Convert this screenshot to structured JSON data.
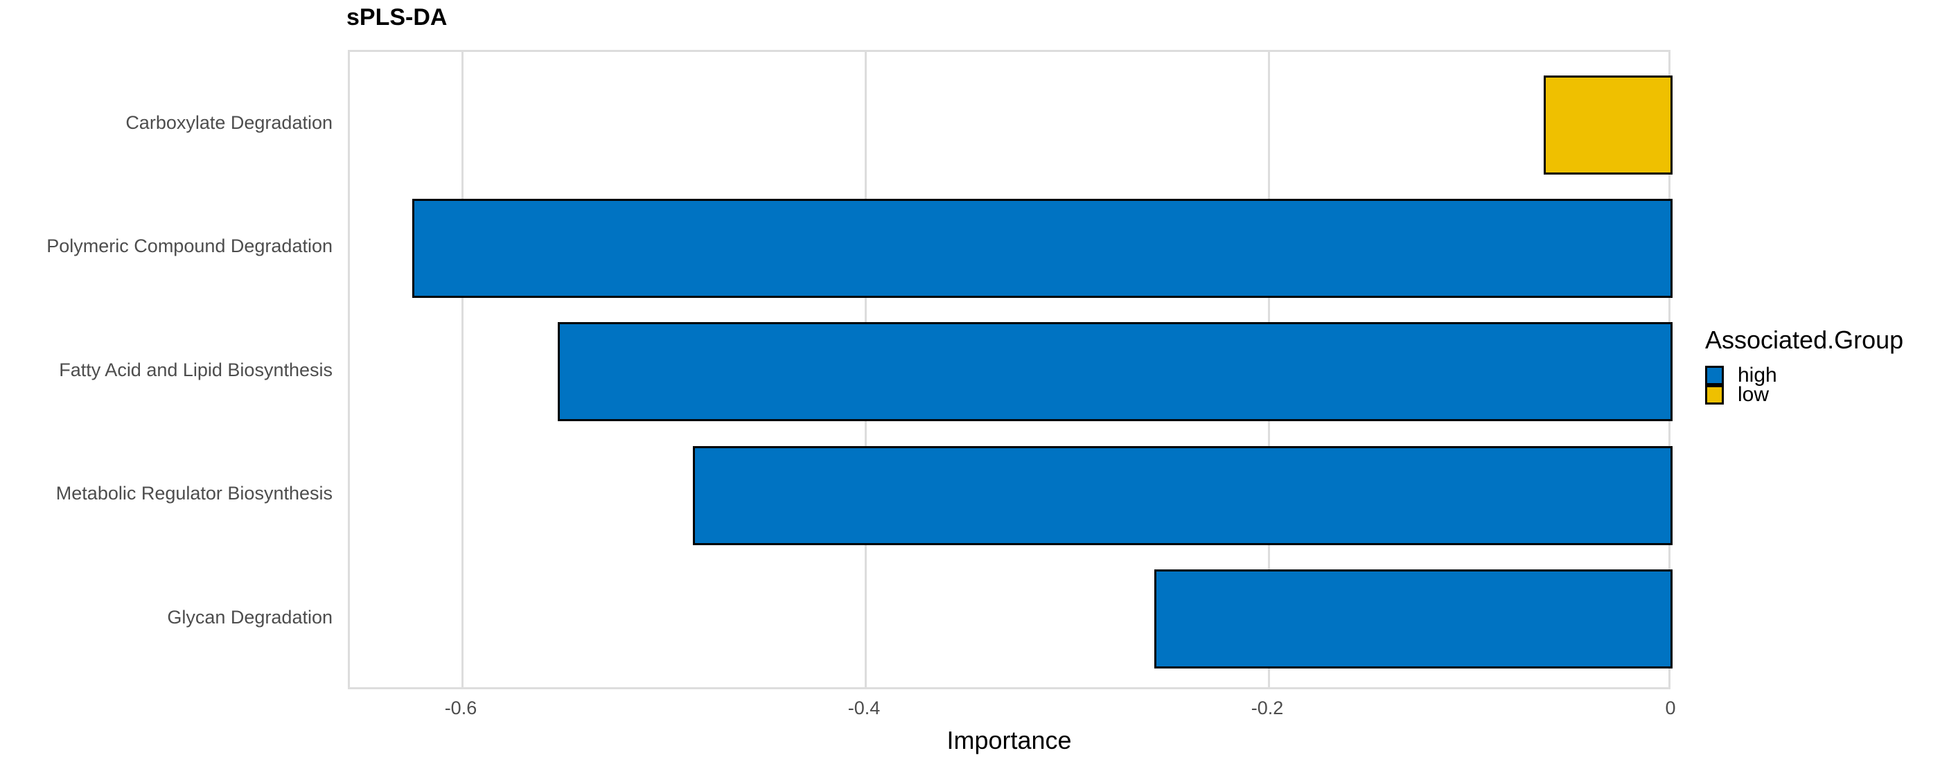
{
  "title": "sPLS-DA",
  "chart_data": {
    "type": "bar",
    "orientation": "horizontal",
    "title": "sPLS-DA",
    "xlabel": "Importance",
    "ylabel": "",
    "xlim": [
      -0.656,
      0
    ],
    "grid": "vertical-major-only",
    "categories": [
      "Carboxylate Degradation",
      "Polymeric Compound Degradation",
      "Fatty Acid and Lipid Biosynthesis",
      "Metabolic Regulator Biosynthesis",
      "Glycan Degradation"
    ],
    "values": [
      -0.064,
      -0.625,
      -0.553,
      -0.486,
      -0.257
    ],
    "groups": [
      "low",
      "high",
      "high",
      "high",
      "high"
    ],
    "x_ticks": [
      {
        "label": "-0.6",
        "value": -0.6
      },
      {
        "label": "-0.4",
        "value": -0.4
      },
      {
        "label": "-0.2",
        "value": -0.2
      },
      {
        "label": "0",
        "value": 0
      }
    ],
    "colors": {
      "high": "#0073C2",
      "low": "#EFC000"
    },
    "bar_border_color": "#000000",
    "legend": {
      "title": "Associated.Group",
      "position": "right",
      "entries": [
        {
          "label": "high",
          "color": "#0073C2"
        },
        {
          "label": "low",
          "color": "#EFC000"
        }
      ]
    },
    "style": {
      "axis_text_color": "#4d4d4d",
      "grid_color": "#dddddd",
      "panel_border_color": "#dddddd",
      "background": "#ffffff"
    }
  }
}
